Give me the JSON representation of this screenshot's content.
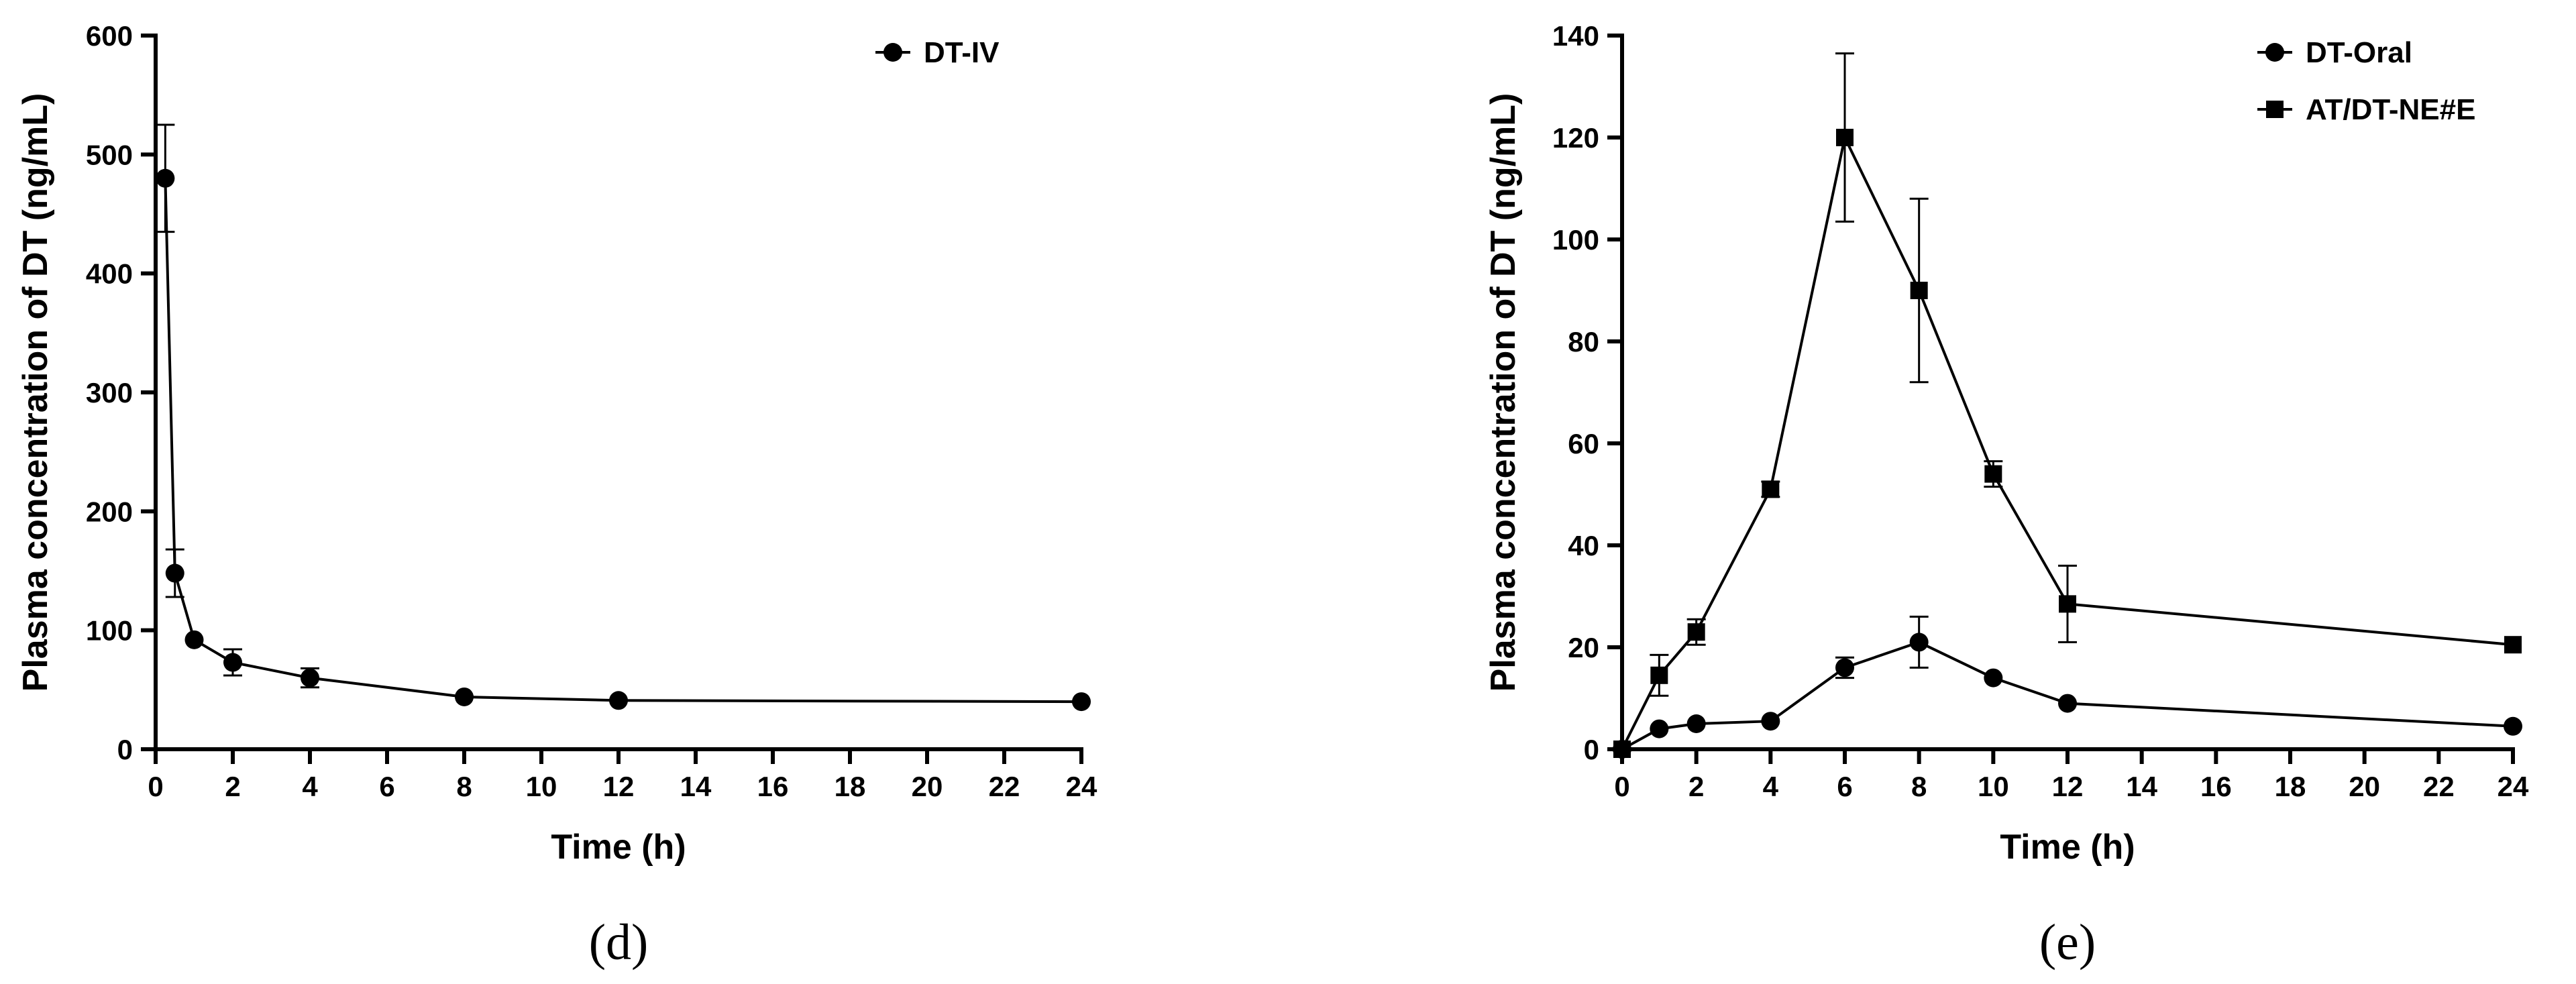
{
  "chart_data": [
    {
      "type": "line",
      "panel_label": "(d)",
      "xlabel": "Time (h)",
      "ylabel": "Plasma concentration of DT (ng/mL)",
      "xlim": [
        0,
        24
      ],
      "ylim": [
        0,
        600
      ],
      "x_ticks": [
        0,
        2,
        4,
        6,
        8,
        10,
        12,
        14,
        16,
        18,
        20,
        22,
        24
      ],
      "y_ticks": [
        0,
        100,
        200,
        300,
        400,
        500,
        600
      ],
      "legend_position": "top-right",
      "series": [
        {
          "name": "DT-IV",
          "marker": "circle",
          "x": [
            0.25,
            0.5,
            1,
            2,
            4,
            8,
            12,
            24
          ],
          "values": [
            480,
            148,
            92,
            73,
            60,
            44,
            41,
            40
          ],
          "errors": [
            45,
            20,
            0,
            11,
            8,
            0,
            0,
            0
          ]
        }
      ]
    },
    {
      "type": "line",
      "panel_label": "(e)",
      "xlabel": "Time (h)",
      "ylabel": "Plasma concentration of DT (ng/mL)",
      "xlim": [
        0,
        24
      ],
      "ylim": [
        0,
        140
      ],
      "x_ticks": [
        0,
        2,
        4,
        6,
        8,
        10,
        12,
        14,
        16,
        18,
        20,
        22,
        24
      ],
      "y_ticks": [
        0,
        20,
        40,
        60,
        80,
        100,
        120,
        140
      ],
      "legend_position": "top-right",
      "series": [
        {
          "name": "DT-Oral",
          "marker": "circle",
          "x": [
            0,
            1,
            2,
            4,
            6,
            8,
            10,
            12,
            24
          ],
          "values": [
            0,
            4,
            5,
            5.5,
            16,
            21,
            14,
            9,
            4.5
          ],
          "errors": [
            0,
            0,
            0,
            0,
            2,
            5,
            0,
            0,
            0
          ]
        },
        {
          "name": "AT/DT-NE#E",
          "marker": "square",
          "x": [
            0,
            1,
            2,
            4,
            6,
            8,
            10,
            12,
            24
          ],
          "values": [
            0,
            14.5,
            23,
            51,
            120,
            90,
            54,
            28.5,
            20.5
          ],
          "errors": [
            0,
            4,
            2.5,
            1.5,
            16.5,
            18,
            2.5,
            7.5,
            0
          ]
        }
      ]
    }
  ]
}
